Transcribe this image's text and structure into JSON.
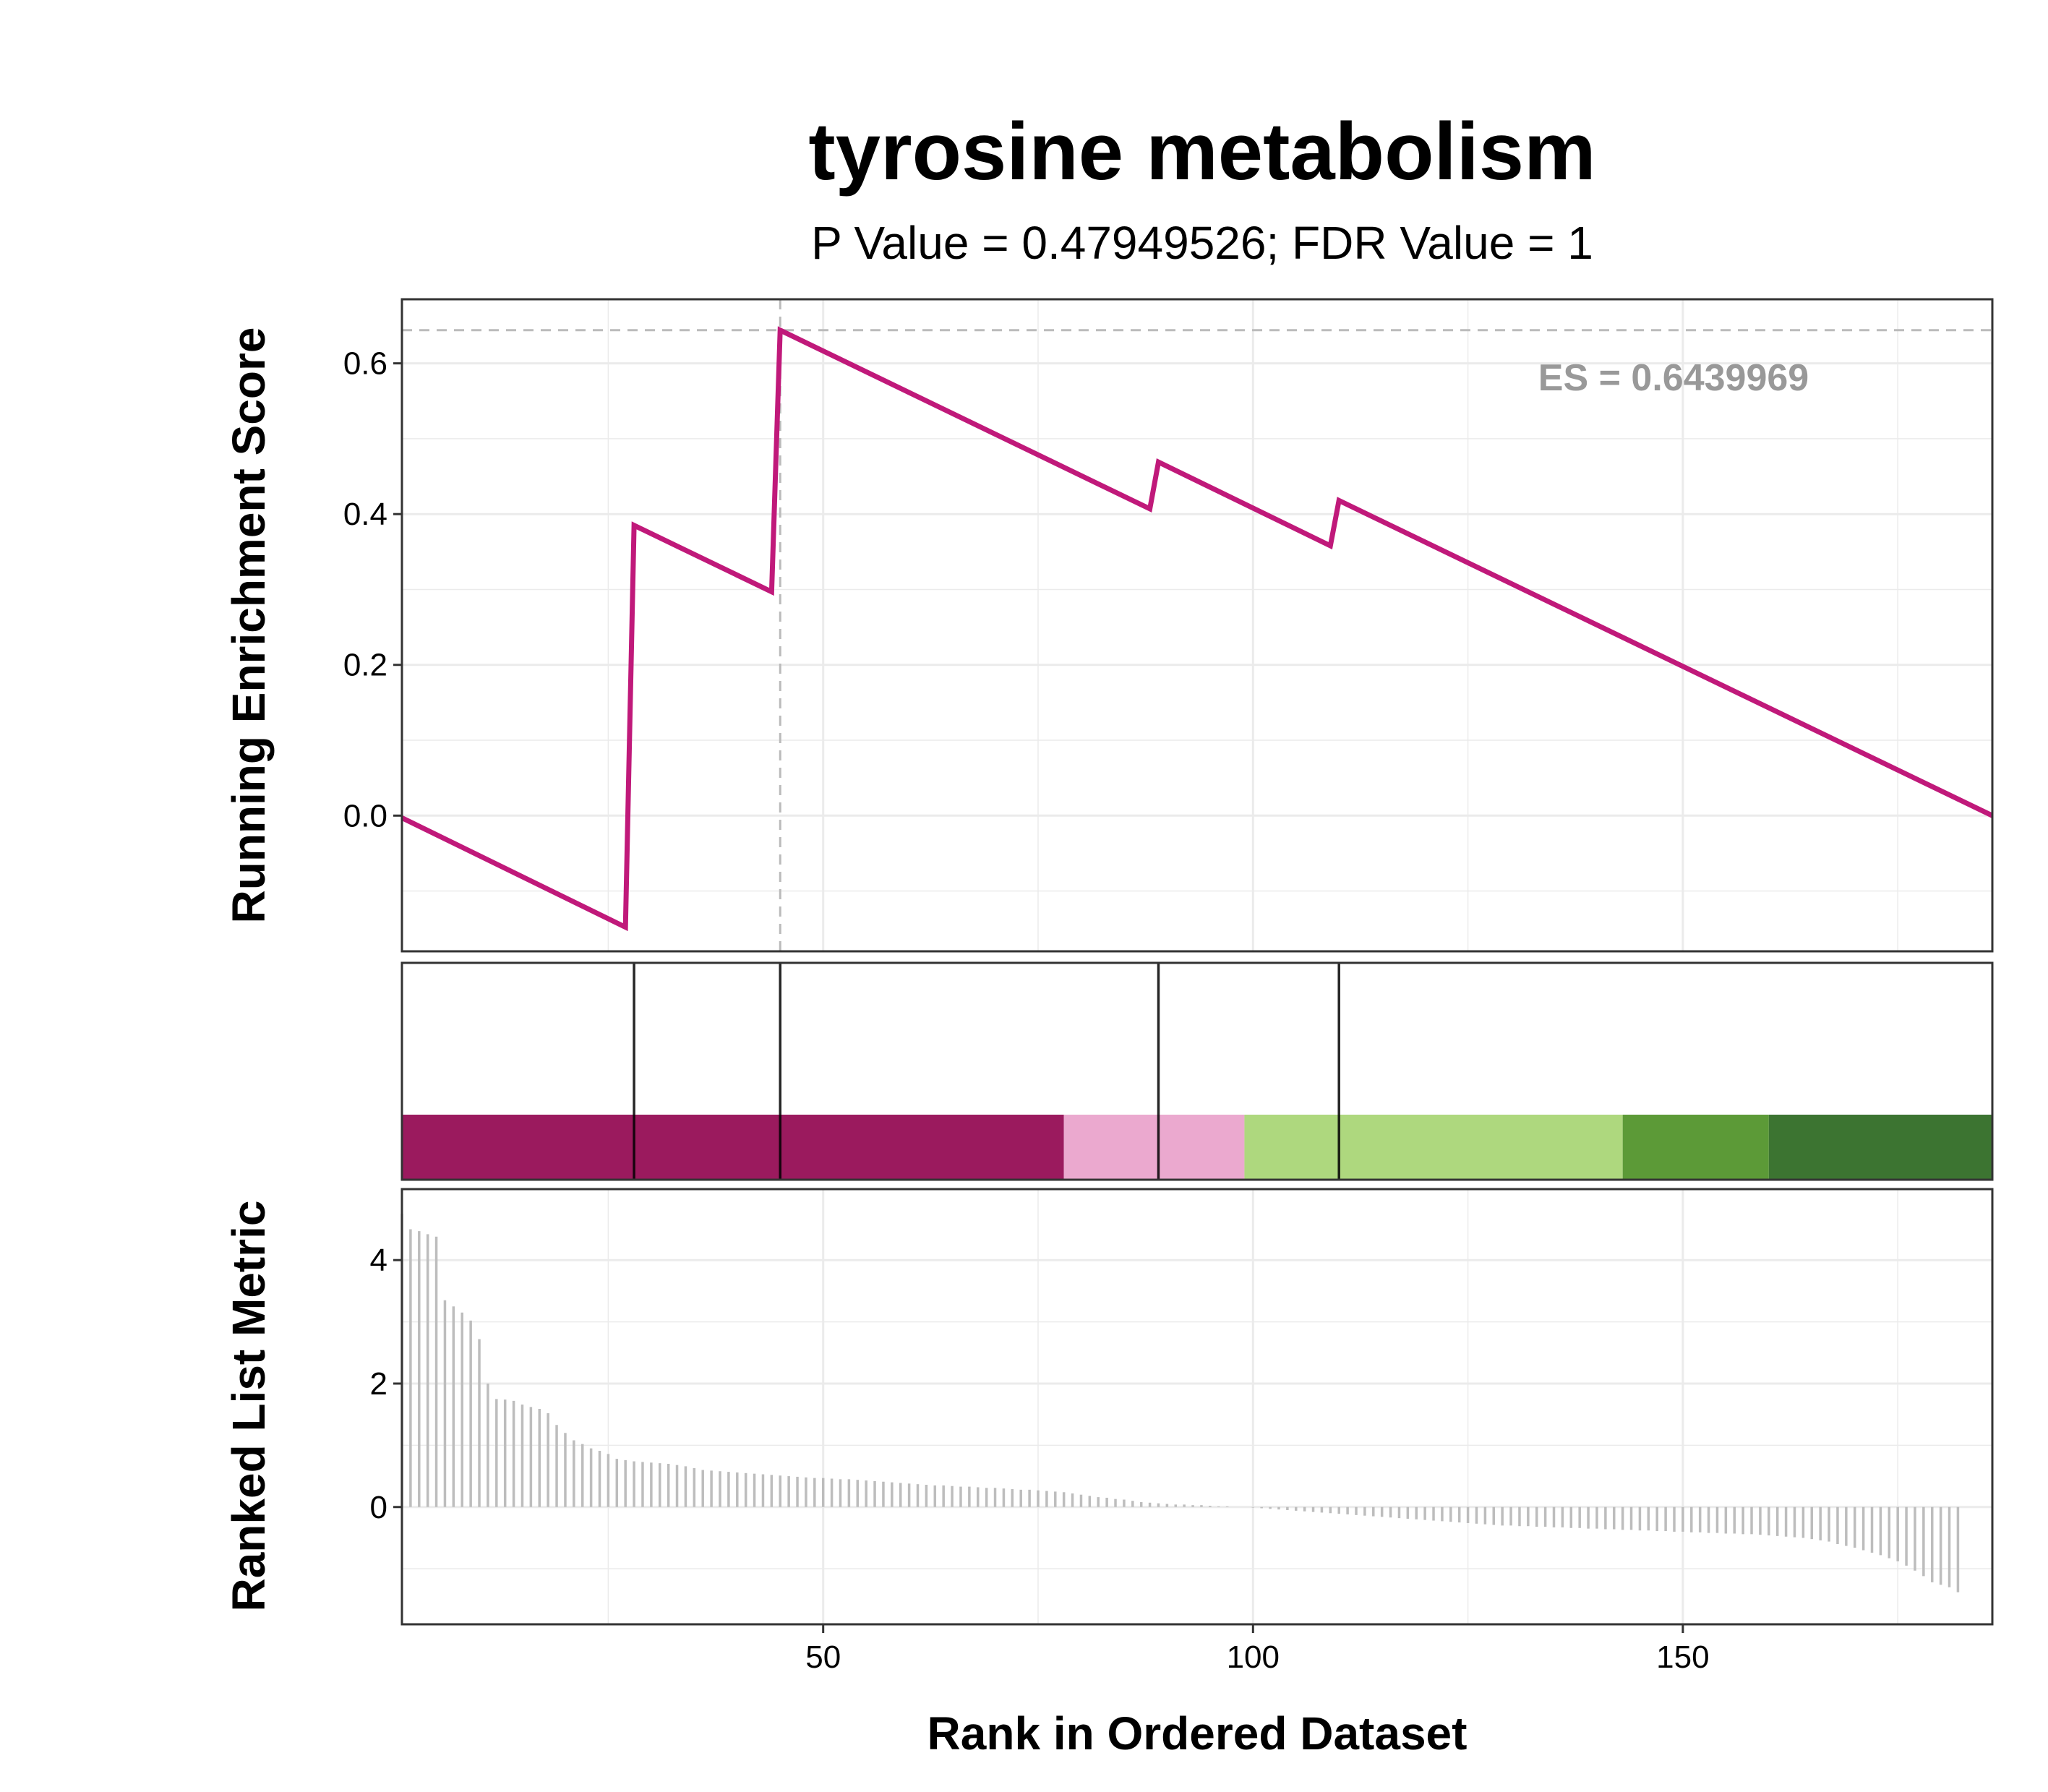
{
  "chart_data": {
    "type": "line",
    "title": "tyrosine metabolism",
    "subtitle": "P Value = 0.47949526; FDR Value = 1",
    "es_label": "ES = 0.6439969",
    "colors": {
      "running_score": "#C0197A",
      "grid": "#EBEBEB",
      "reference_line": "#BBBBBB",
      "metric_bars": "#BDBDBD",
      "es_text": "#999999"
    },
    "panels": {
      "running_score": {
        "ylabel": "Running Enrichment Score",
        "ylim": [
          -0.18,
          0.685
        ],
        "yticks": [
          0.0,
          0.2,
          0.4,
          0.6
        ],
        "ytick_labels": [
          "0.0",
          "0.2",
          "0.4",
          "0.6"
        ],
        "points": [
          [
            1,
            -0.003
          ],
          [
            27,
            -0.148
          ],
          [
            28,
            0.385
          ],
          [
            44,
            0.297
          ],
          [
            45,
            0.644
          ],
          [
            88,
            0.407
          ],
          [
            89,
            0.469
          ],
          [
            109,
            0.358
          ],
          [
            110,
            0.418
          ],
          [
            186,
            0.0
          ]
        ],
        "max_es_rank": 45,
        "max_es_value": 0.644
      },
      "hits": {
        "ranks": [
          28,
          45,
          89,
          110
        ],
        "bands": [
          {
            "from": 1,
            "to": 78,
            "color": "#9B1A5E"
          },
          {
            "from": 78,
            "to": 99,
            "color": "#EBA9CF"
          },
          {
            "from": 99,
            "to": 143,
            "color": "#AED87E"
          },
          {
            "from": 143,
            "to": 160,
            "color": "#5C9A37"
          },
          {
            "from": 160,
            "to": 187,
            "color": "#3C7431"
          }
        ]
      },
      "ranked_metric": {
        "ylabel": "Ranked List Metric",
        "ylim": [
          -1.9,
          5.15
        ],
        "yticks": [
          0,
          2,
          4
        ],
        "ytick_labels": [
          "0",
          "2",
          "4"
        ],
        "values": [
          4.75,
          4.5,
          4.47,
          4.42,
          4.38,
          3.35,
          3.25,
          3.15,
          3.02,
          2.72,
          2.0,
          1.75,
          1.74,
          1.72,
          1.66,
          1.62,
          1.59,
          1.52,
          1.33,
          1.2,
          1.08,
          1.02,
          0.95,
          0.91,
          0.86,
          0.78,
          0.76,
          0.74,
          0.73,
          0.72,
          0.71,
          0.7,
          0.68,
          0.66,
          0.63,
          0.6,
          0.59,
          0.58,
          0.57,
          0.56,
          0.55,
          0.54,
          0.53,
          0.52,
          0.51,
          0.5,
          0.49,
          0.48,
          0.47,
          0.47,
          0.46,
          0.45,
          0.45,
          0.44,
          0.43,
          0.42,
          0.41,
          0.4,
          0.39,
          0.38,
          0.37,
          0.36,
          0.35,
          0.35,
          0.34,
          0.33,
          0.33,
          0.32,
          0.31,
          0.31,
          0.3,
          0.29,
          0.28,
          0.28,
          0.27,
          0.26,
          0.25,
          0.24,
          0.22,
          0.2,
          0.18,
          0.16,
          0.15,
          0.13,
          0.12,
          0.1,
          0.08,
          0.07,
          0.06,
          0.05,
          0.04,
          0.04,
          0.03,
          0.03,
          0.02,
          0.01,
          0.01,
          0.0,
          0.0,
          -0.01,
          -0.02,
          -0.03,
          -0.04,
          -0.05,
          -0.06,
          -0.07,
          -0.08,
          -0.09,
          -0.1,
          -0.11,
          -0.12,
          -0.13,
          -0.14,
          -0.15,
          -0.16,
          -0.17,
          -0.18,
          -0.19,
          -0.2,
          -0.21,
          -0.22,
          -0.23,
          -0.24,
          -0.25,
          -0.26,
          -0.27,
          -0.28,
          -0.29,
          -0.3,
          -0.3,
          -0.31,
          -0.31,
          -0.32,
          -0.32,
          -0.33,
          -0.33,
          -0.34,
          -0.34,
          -0.35,
          -0.35,
          -0.36,
          -0.36,
          -0.37,
          -0.37,
          -0.38,
          -0.38,
          -0.39,
          -0.39,
          -0.4,
          -0.4,
          -0.41,
          -0.41,
          -0.42,
          -0.42,
          -0.43,
          -0.43,
          -0.44,
          -0.44,
          -0.45,
          -0.46,
          -0.47,
          -0.48,
          -0.49,
          -0.5,
          -0.52,
          -0.54,
          -0.56,
          -0.6,
          -0.63,
          -0.66,
          -0.7,
          -0.74,
          -0.78,
          -0.83,
          -0.88,
          -0.95,
          -1.03,
          -1.12,
          -1.22,
          -1.26,
          -1.3,
          -1.38
        ]
      }
    },
    "xlabel": "Rank in Ordered Dataset",
    "xlim": [
      1,
      186
    ],
    "xticks": [
      50,
      100,
      150
    ],
    "xtick_labels": [
      "50",
      "100",
      "150"
    ]
  }
}
